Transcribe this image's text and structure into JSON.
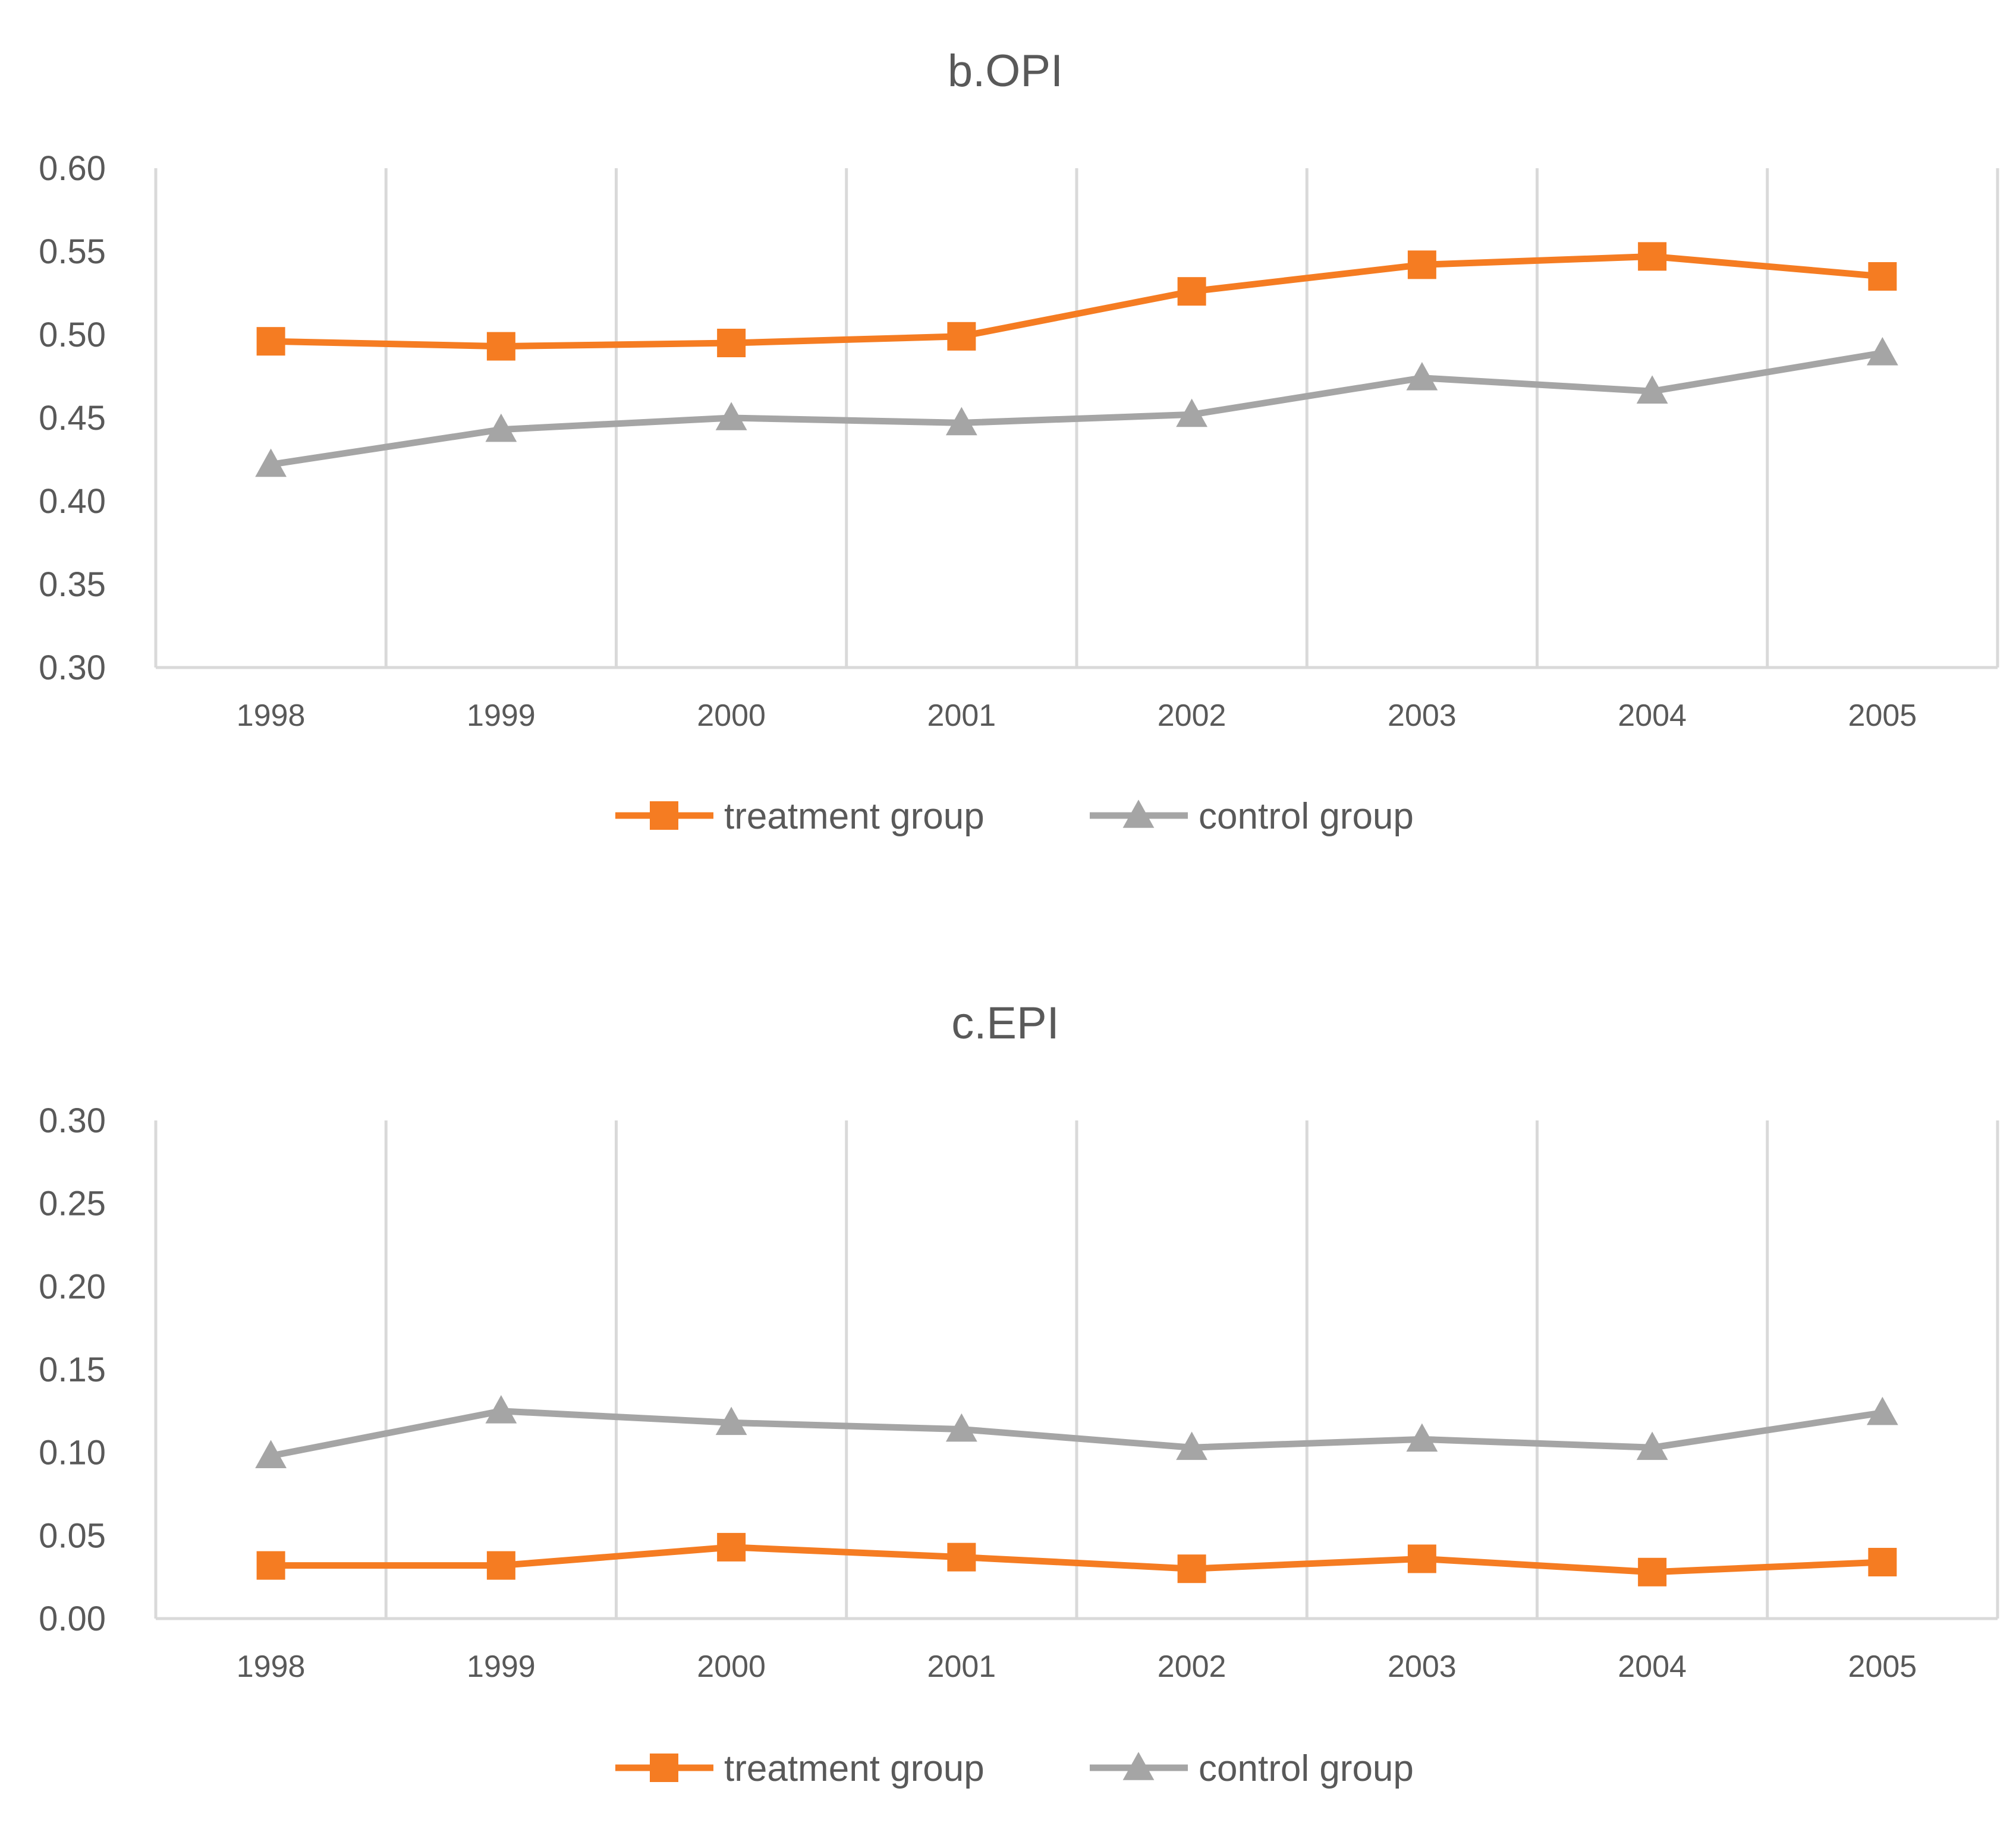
{
  "chart_data": [
    {
      "type": "line",
      "title": "b.OPI",
      "categories": [
        "1998",
        "1999",
        "2000",
        "2001",
        "2002",
        "2003",
        "2004",
        "2005"
      ],
      "ylim": [
        0.3,
        0.6
      ],
      "yticks": [
        "0.30",
        "0.35",
        "0.40",
        "0.45",
        "0.50",
        "0.55",
        "0.60"
      ],
      "series": [
        {
          "name": "treatment group",
          "color": "#F57C22",
          "marker": "square",
          "values": [
            0.496,
            0.493,
            0.495,
            0.499,
            0.526,
            0.542,
            0.547,
            0.535
          ]
        },
        {
          "name": "control group",
          "color": "#A5A5A5",
          "marker": "triangle",
          "values": [
            0.422,
            0.443,
            0.45,
            0.447,
            0.452,
            0.474,
            0.466,
            0.489
          ]
        }
      ],
      "xlabel": "",
      "ylabel": "",
      "legend": "bottom",
      "grid": "vertical"
    },
    {
      "type": "line",
      "title": "c.EPI",
      "categories": [
        "1998",
        "1999",
        "2000",
        "2001",
        "2002",
        "2003",
        "2004",
        "2005"
      ],
      "ylim": [
        0.0,
        0.3
      ],
      "yticks": [
        "0.00",
        "0.05",
        "0.10",
        "0.15",
        "0.20",
        "0.25",
        "0.30"
      ],
      "series": [
        {
          "name": "treatment group",
          "color": "#F57C22",
          "marker": "square",
          "values": [
            0.032,
            0.032,
            0.043,
            0.037,
            0.03,
            0.036,
            0.028,
            0.034
          ]
        },
        {
          "name": "control group",
          "color": "#A5A5A5",
          "marker": "triangle",
          "values": [
            0.098,
            0.125,
            0.118,
            0.114,
            0.103,
            0.108,
            0.103,
            0.124
          ]
        }
      ],
      "xlabel": "",
      "ylabel": "",
      "legend": "bottom",
      "grid": "vertical"
    }
  ]
}
